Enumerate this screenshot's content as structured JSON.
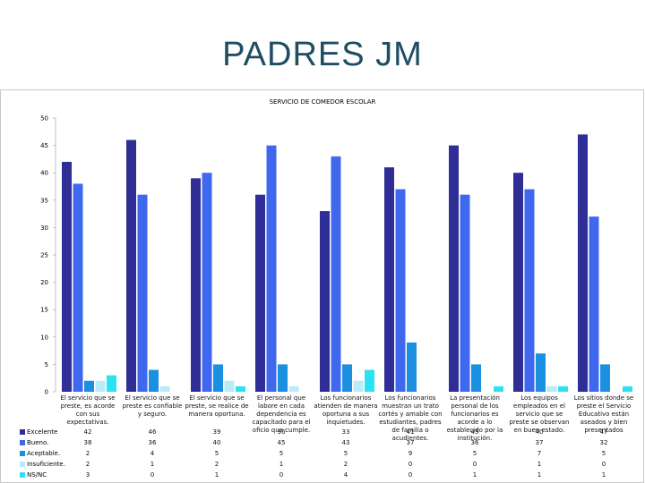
{
  "slide": {
    "title": "PADRES JM"
  },
  "chart_data": {
    "type": "bar",
    "title": "SERVICIO DE COMEDOR ESCOLAR",
    "xlabel": "",
    "ylabel": "",
    "ylim": [
      0,
      50
    ],
    "yticks": [
      0,
      5,
      10,
      15,
      20,
      25,
      30,
      35,
      40,
      45,
      50
    ],
    "grid": false,
    "legend": "table-left",
    "categories": [
      "El servicio que se preste, es acorde con sus expectativas.",
      "El servicio que se preste es confiable y seguro.",
      "El servicio que se preste, se realice de manera oportuna.",
      "El personal que labore en cada dependencia es capacitado para el oficio que cumple.",
      "Los funcionarios atienden de manera oportuna a sus inquietudes.",
      "Los funcionarios muestran un trato cortés y amable con estudiantes, padres de familia o acudientes.",
      "La presentación personal de los funcionarios es acorde a lo establecido por la institución.",
      "Los equipos empleados en el servicio que se preste se observan en buen estado.",
      "Los sitios donde se preste el Servicio Educativo están aseados y bien presentados"
    ],
    "series": [
      {
        "name": "Excelente",
        "color": "#2e2e96",
        "values": [
          42,
          46,
          39,
          36,
          33,
          41,
          45,
          40,
          47
        ]
      },
      {
        "name": "Bueno.",
        "color": "#3f68ee",
        "values": [
          38,
          36,
          40,
          45,
          43,
          37,
          36,
          37,
          32
        ]
      },
      {
        "name": "Aceptable.",
        "color": "#1b8fe0",
        "values": [
          2,
          4,
          5,
          5,
          5,
          9,
          5,
          7,
          5
        ]
      },
      {
        "name": "Insuficiente.",
        "color": "#b8ecf6",
        "values": [
          2,
          1,
          2,
          1,
          2,
          0,
          0,
          1,
          0
        ]
      },
      {
        "name": "NS/NC",
        "color": "#2ae2f2",
        "values": [
          3,
          0,
          1,
          0,
          4,
          0,
          1,
          1,
          1
        ]
      }
    ]
  }
}
